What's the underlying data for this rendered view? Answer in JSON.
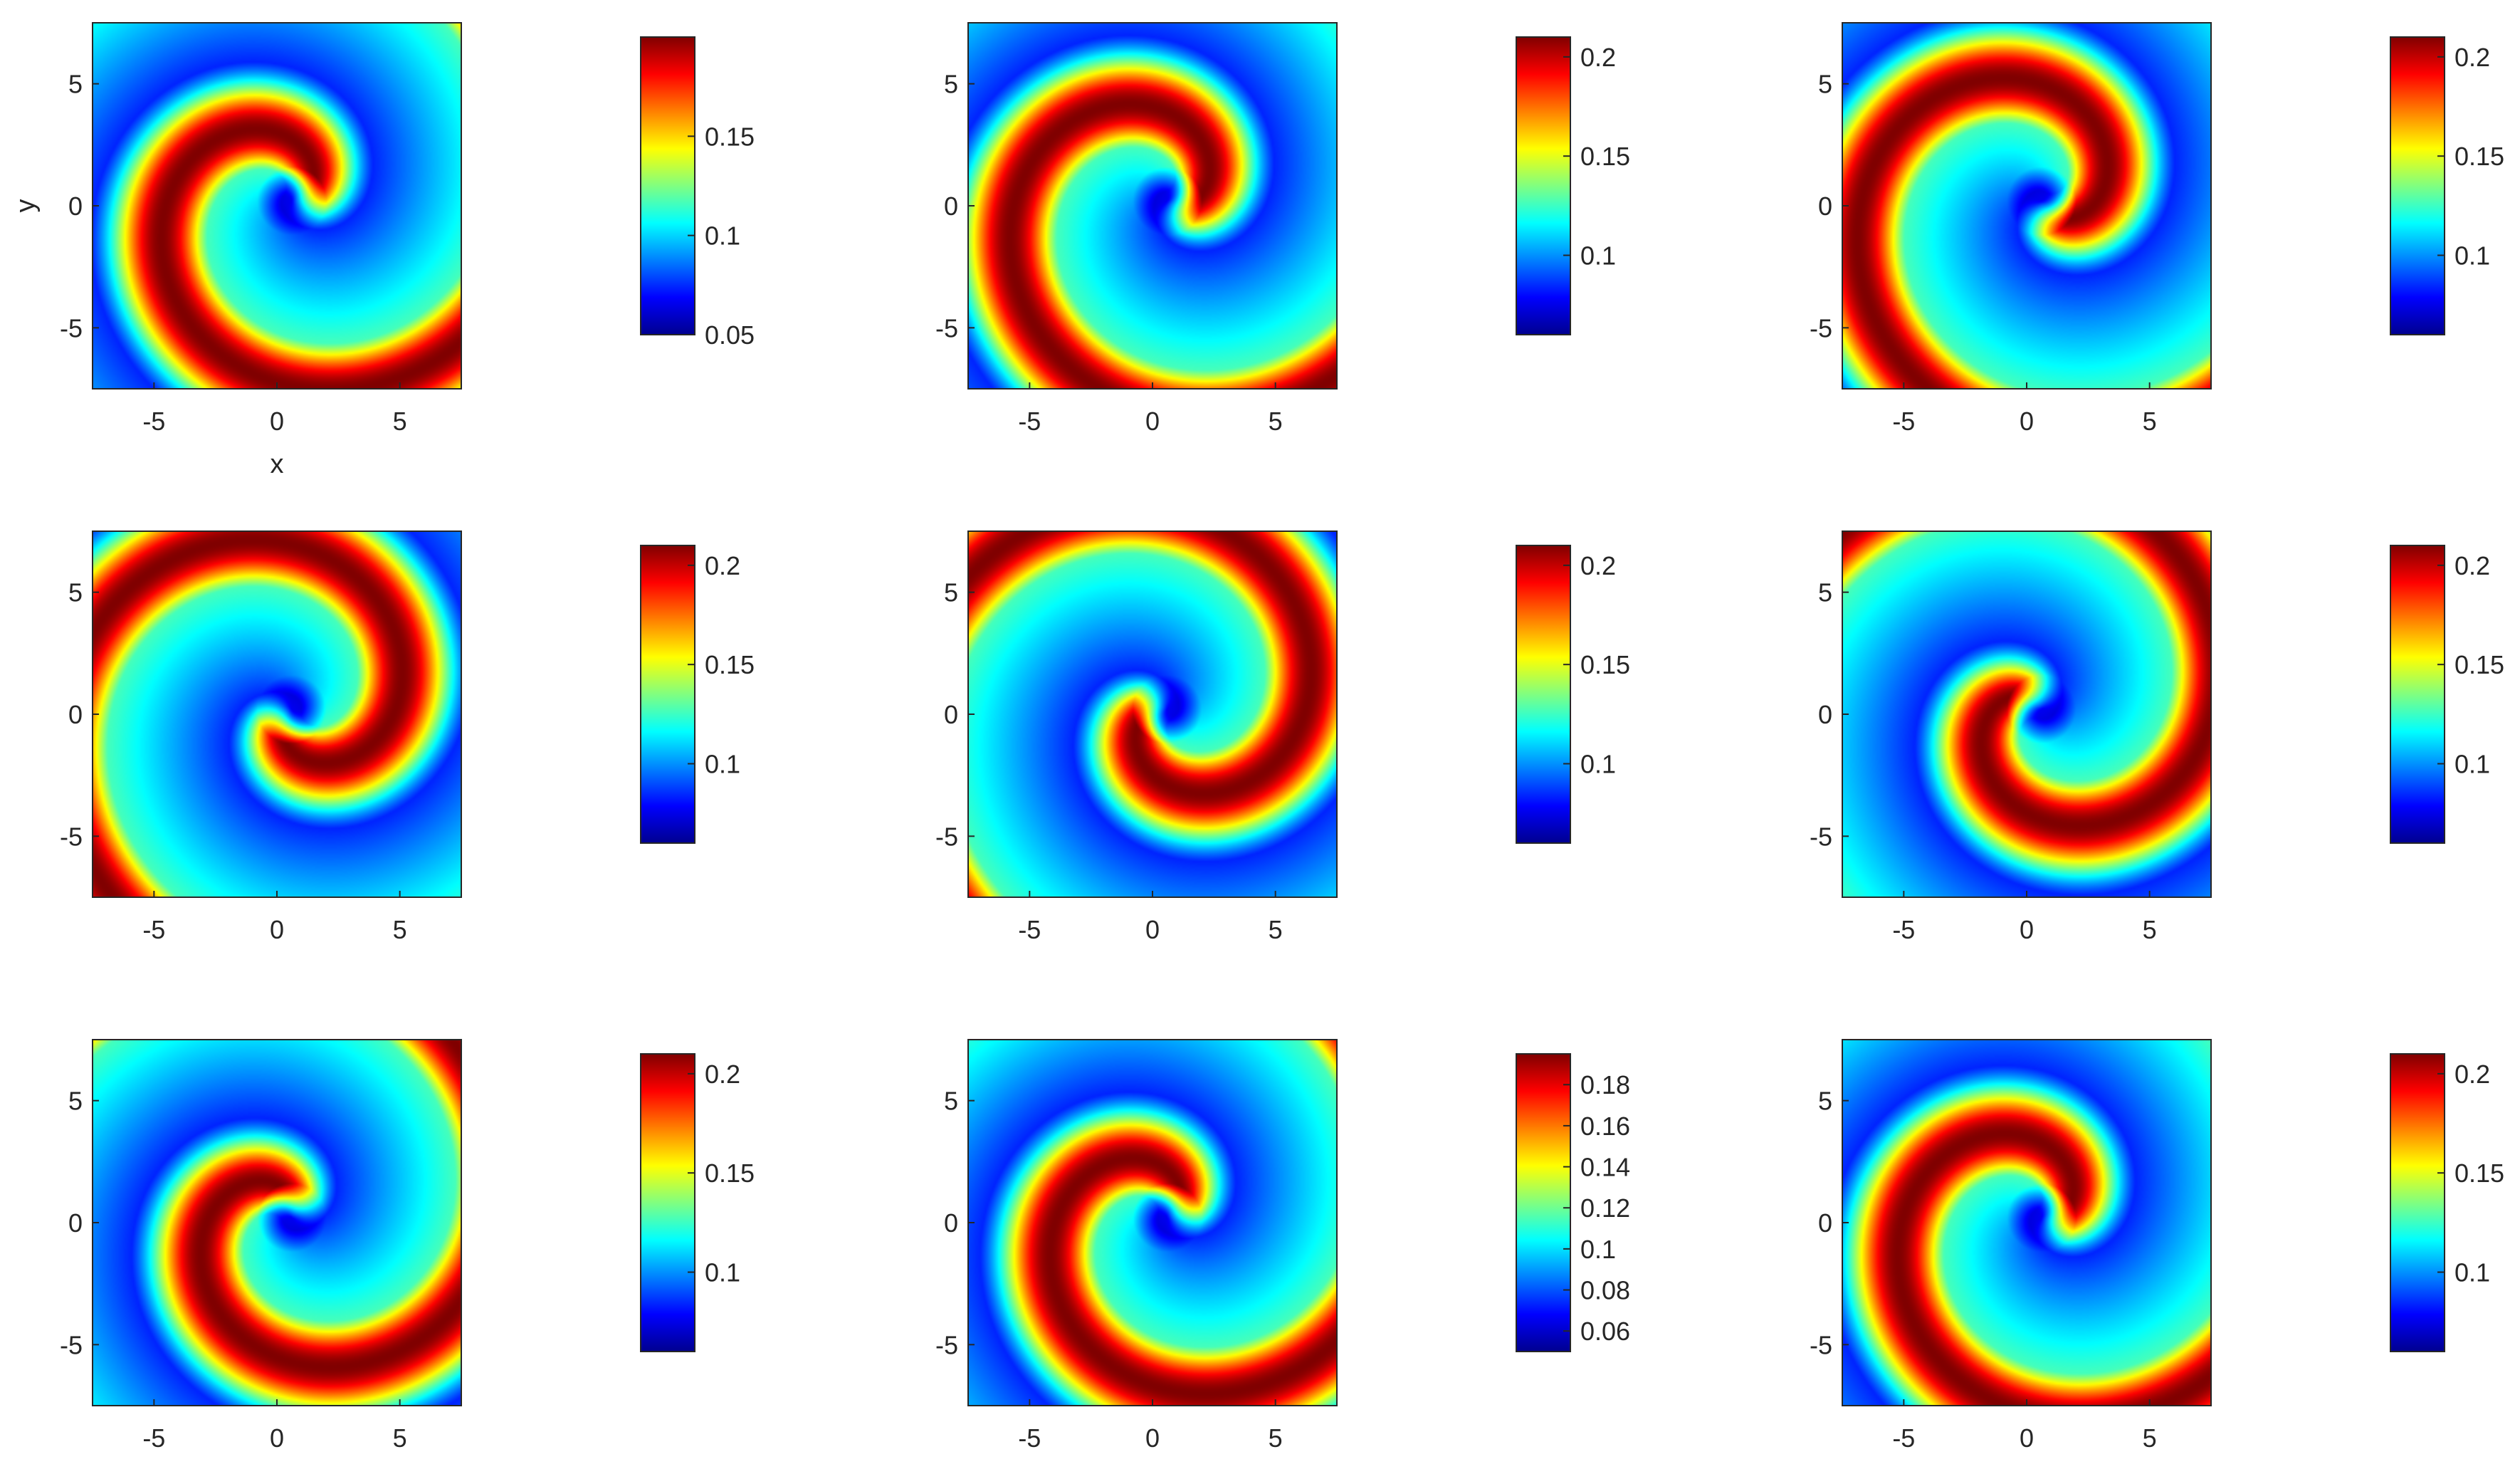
{
  "figure": {
    "rows": 3,
    "cols": 3,
    "colormap": [
      "#00008f",
      "#0000ff",
      "#0080ff",
      "#00ffff",
      "#80ff80",
      "#ffff00",
      "#ff8000",
      "#ff0000",
      "#800000"
    ]
  },
  "chart_data": [
    {
      "type": "heatmap",
      "title": "",
      "xlabel": "x",
      "ylabel": "y",
      "xlim": [
        -7.5,
        7.5
      ],
      "ylim": [
        -7.5,
        7.5
      ],
      "x_ticks": [
        -5,
        0,
        5
      ],
      "y_ticks": [
        5,
        0,
        -5
      ],
      "x_tick_labels": [
        "-5",
        "0",
        "5"
      ],
      "y_tick_labels": [
        "5",
        "0",
        "-5"
      ],
      "colorbar": {
        "range": [
          0.05,
          0.2
        ],
        "ticks": [
          0.15,
          0.1,
          0.05
        ],
        "tick_labels": [
          "0.15",
          "0.1",
          "0.05"
        ]
      },
      "spiral": {
        "rotation_deg": 0,
        "arms": 1,
        "background_min": 0.05,
        "background_max": 0.2
      }
    },
    {
      "type": "heatmap",
      "title": "",
      "xlabel": "",
      "ylabel": "",
      "xlim": [
        -7.5,
        7.5
      ],
      "ylim": [
        -7.5,
        7.5
      ],
      "x_ticks": [
        -5,
        0,
        5
      ],
      "y_ticks": [
        5,
        0,
        -5
      ],
      "x_tick_labels": [
        "-5",
        "0",
        "5"
      ],
      "y_tick_labels": [
        "5",
        "0",
        "-5"
      ],
      "colorbar": {
        "range": [
          0.06,
          0.21
        ],
        "ticks": [
          0.2,
          0.15,
          0.1
        ],
        "tick_labels": [
          "0.2",
          "0.15",
          "0.1"
        ]
      },
      "spiral": {
        "rotation_deg": 40,
        "arms": 1,
        "background_min": 0.06,
        "background_max": 0.21
      }
    },
    {
      "type": "heatmap",
      "title": "",
      "xlabel": "",
      "ylabel": "",
      "xlim": [
        -7.5,
        7.5
      ],
      "ylim": [
        -7.5,
        7.5
      ],
      "x_ticks": [
        -5,
        0,
        5
      ],
      "y_ticks": [
        5,
        0,
        -5
      ],
      "x_tick_labels": [
        "-5",
        "0",
        "5"
      ],
      "y_tick_labels": [
        "5",
        "0",
        "-5"
      ],
      "colorbar": {
        "range": [
          0.06,
          0.21
        ],
        "ticks": [
          0.2,
          0.15,
          0.1
        ],
        "tick_labels": [
          "0.2",
          "0.15",
          "0.1"
        ]
      },
      "spiral": {
        "rotation_deg": 80,
        "arms": 1,
        "background_min": 0.06,
        "background_max": 0.21
      }
    },
    {
      "type": "heatmap",
      "title": "",
      "xlabel": "",
      "ylabel": "",
      "xlim": [
        -7.5,
        7.5
      ],
      "ylim": [
        -7.5,
        7.5
      ],
      "x_ticks": [
        -5,
        0,
        5
      ],
      "y_ticks": [
        5,
        0,
        -5
      ],
      "x_tick_labels": [
        "-5",
        "0",
        "5"
      ],
      "y_tick_labels": [
        "5",
        "0",
        "-5"
      ],
      "colorbar": {
        "range": [
          0.06,
          0.21
        ],
        "ticks": [
          0.2,
          0.15,
          0.1
        ],
        "tick_labels": [
          "0.2",
          "0.15",
          "0.1"
        ]
      },
      "spiral": {
        "rotation_deg": 150,
        "arms": 1,
        "background_min": 0.06,
        "background_max": 0.21
      }
    },
    {
      "type": "heatmap",
      "title": "",
      "xlabel": "",
      "ylabel": "",
      "xlim": [
        -7.5,
        7.5
      ],
      "ylim": [
        -7.5,
        7.5
      ],
      "x_ticks": [
        -5,
        0,
        5
      ],
      "y_ticks": [
        5,
        0,
        -5
      ],
      "x_tick_labels": [
        "-5",
        "0",
        "5"
      ],
      "y_tick_labels": [
        "5",
        "0",
        "-5"
      ],
      "colorbar": {
        "range": [
          0.06,
          0.21
        ],
        "ticks": [
          0.2,
          0.15,
          0.1
        ],
        "tick_labels": [
          "0.2",
          "0.15",
          "0.1"
        ]
      },
      "spiral": {
        "rotation_deg": 200,
        "arms": 1,
        "background_min": 0.06,
        "background_max": 0.21
      }
    },
    {
      "type": "heatmap",
      "title": "",
      "xlabel": "",
      "ylabel": "",
      "xlim": [
        -7.5,
        7.5
      ],
      "ylim": [
        -7.5,
        7.5
      ],
      "x_ticks": [
        -5,
        0,
        5
      ],
      "y_ticks": [
        5,
        0,
        -5
      ],
      "x_tick_labels": [
        "-5",
        "0",
        "5"
      ],
      "y_tick_labels": [
        "5",
        "0",
        "-5"
      ],
      "colorbar": {
        "range": [
          0.06,
          0.21
        ],
        "ticks": [
          0.2,
          0.15,
          0.1
        ],
        "tick_labels": [
          "0.2",
          "0.15",
          "0.1"
        ]
      },
      "spiral": {
        "rotation_deg": 250,
        "arms": 1,
        "background_min": 0.06,
        "background_max": 0.21
      }
    },
    {
      "type": "heatmap",
      "title": "",
      "xlabel": "",
      "ylabel": "",
      "xlim": [
        -7.5,
        7.5
      ],
      "ylim": [
        -7.5,
        7.5
      ],
      "x_ticks": [
        -5,
        0,
        5
      ],
      "y_ticks": [
        5,
        0,
        -5
      ],
      "x_tick_labels": [
        "-5",
        "0",
        "5"
      ],
      "y_tick_labels": [
        "5",
        "0",
        "-5"
      ],
      "colorbar": {
        "range": [
          0.06,
          0.21
        ],
        "ticks": [
          0.2,
          0.15,
          0.1
        ],
        "tick_labels": [
          "0.2",
          "0.15",
          "0.1"
        ]
      },
      "spiral": {
        "rotation_deg": 300,
        "arms": 1,
        "background_min": 0.06,
        "background_max": 0.21
      }
    },
    {
      "type": "heatmap",
      "title": "",
      "xlabel": "",
      "ylabel": "",
      "xlim": [
        -7.5,
        7.5
      ],
      "ylim": [
        -7.5,
        7.5
      ],
      "x_ticks": [
        -5,
        0,
        5
      ],
      "y_ticks": [
        5,
        0,
        -5
      ],
      "x_tick_labels": [
        "-5",
        "0",
        "5"
      ],
      "y_tick_labels": [
        "5",
        "0",
        "-5"
      ],
      "colorbar": {
        "range": [
          0.05,
          0.195
        ],
        "ticks": [
          0.18,
          0.16,
          0.14,
          0.12,
          0.1,
          0.08,
          0.06
        ],
        "tick_labels": [
          "0.18",
          "0.16",
          "0.14",
          "0.12",
          "0.1",
          "0.08",
          "0.06"
        ]
      },
      "spiral": {
        "rotation_deg": 340,
        "arms": 1,
        "background_min": 0.05,
        "background_max": 0.195
      }
    },
    {
      "type": "heatmap",
      "title": "",
      "xlabel": "",
      "ylabel": "",
      "xlim": [
        -7.5,
        7.5
      ],
      "ylim": [
        -7.5,
        7.5
      ],
      "x_ticks": [
        -5,
        0,
        5
      ],
      "y_ticks": [
        5,
        0,
        -5
      ],
      "x_tick_labels": [
        "-5",
        "0",
        "5"
      ],
      "y_tick_labels": [
        "5",
        "0",
        "-5"
      ],
      "colorbar": {
        "range": [
          0.06,
          0.21
        ],
        "ticks": [
          0.2,
          0.15,
          0.1
        ],
        "tick_labels": [
          "0.2",
          "0.15",
          "0.1"
        ]
      },
      "spiral": {
        "rotation_deg": 20,
        "arms": 1,
        "background_min": 0.06,
        "background_max": 0.21
      }
    }
  ]
}
